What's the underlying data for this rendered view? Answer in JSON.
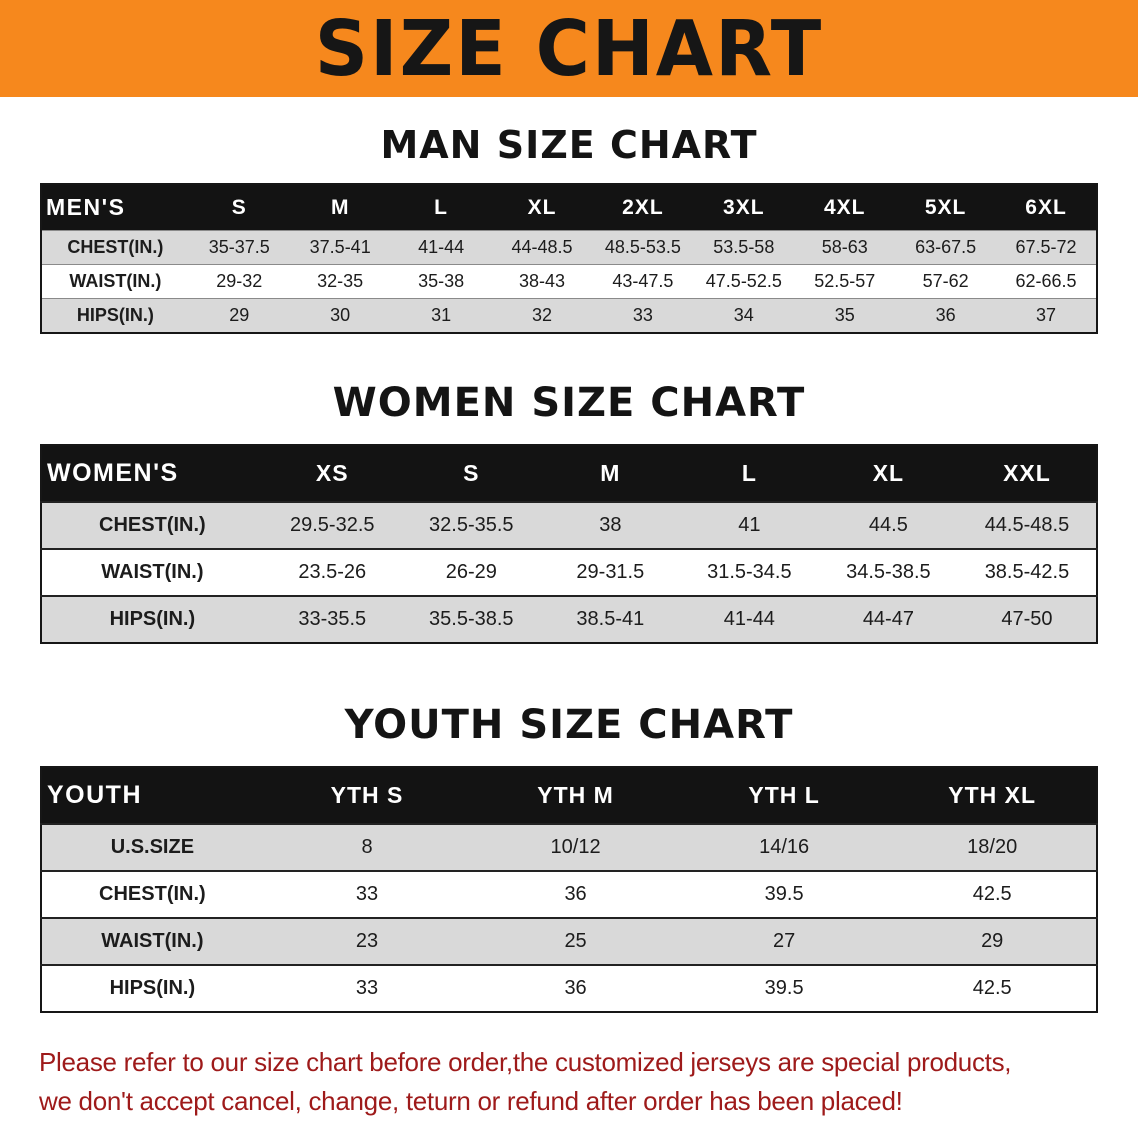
{
  "colors": {
    "banner_bg": "#f6881d",
    "table_header_bg": "#131313",
    "table_header_text": "#ffffff",
    "row_stripe": "#d9d9d9",
    "notice_text": "#9e1a1a"
  },
  "banner": {
    "title": "SIZE CHART"
  },
  "sections": [
    {
      "key": "men",
      "heading": "MAN SIZE CHART",
      "table": {
        "header": [
          "MEN'S",
          "S",
          "M",
          "L",
          "XL",
          "2XL",
          "3XL",
          "4XL",
          "5XL",
          "6XL"
        ],
        "rows": [
          [
            "CHEST(IN.)",
            "35-37.5",
            "37.5-41",
            "41-44",
            "44-48.5",
            "48.5-53.5",
            "53.5-58",
            "58-63",
            "63-67.5",
            "67.5-72"
          ],
          [
            "WAIST(IN.)",
            "29-32",
            "32-35",
            "35-38",
            "38-43",
            "43-47.5",
            "47.5-52.5",
            "52.5-57",
            "57-62",
            "62-66.5"
          ],
          [
            "HIPS(IN.)",
            "29",
            "30",
            "31",
            "32",
            "33",
            "34",
            "35",
            "36",
            "37"
          ]
        ]
      }
    },
    {
      "key": "women",
      "heading": "WOMEN SIZE CHART",
      "table": {
        "header": [
          "WOMEN'S",
          "XS",
          "S",
          "M",
          "L",
          "XL",
          "XXL"
        ],
        "rows": [
          [
            "CHEST(IN.)",
            "29.5-32.5",
            "32.5-35.5",
            "38",
            "41",
            "44.5",
            "44.5-48.5"
          ],
          [
            "WAIST(IN.)",
            "23.5-26",
            "26-29",
            "29-31.5",
            "31.5-34.5",
            "34.5-38.5",
            "38.5-42.5"
          ],
          [
            "HIPS(IN.)",
            "33-35.5",
            "35.5-38.5",
            "38.5-41",
            "41-44",
            "44-47",
            "47-50"
          ]
        ]
      }
    },
    {
      "key": "youth",
      "heading": "YOUTH SIZE CHART",
      "table": {
        "header": [
          "YOUTH",
          "YTH S",
          "YTH M",
          "YTH L",
          "YTH XL"
        ],
        "rows": [
          [
            "U.S.SIZE",
            "8",
            "10/12",
            "14/16",
            "18/20"
          ],
          [
            "CHEST(IN.)",
            "33",
            "36",
            "39.5",
            "42.5"
          ],
          [
            "WAIST(IN.)",
            "23",
            "25",
            "27",
            "29"
          ],
          [
            "HIPS(IN.)",
            "33",
            "36",
            "39.5",
            "42.5"
          ]
        ]
      }
    }
  ],
  "notice": {
    "line1": "Please refer to our size chart before order,the customized jerseys are special products,",
    "line2": "we don't accept cancel, change, teturn or refund after order has been placed!"
  }
}
